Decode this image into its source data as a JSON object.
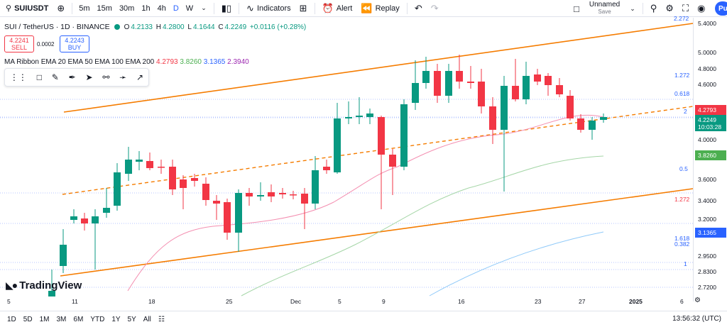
{
  "toolbar": {
    "symbol": "SUIUSDT",
    "add_icon": "plus-circle-icon",
    "timeframes": [
      "5m",
      "15m",
      "30m",
      "1h",
      "4h",
      "D",
      "W"
    ],
    "active_timeframe": "D",
    "indicators_label": "Indicators",
    "alert_label": "Alert",
    "replay_label": "Replay",
    "layout_name": "Unnamed",
    "layout_sub": "Save",
    "avatar_letter": "Pu"
  },
  "legend": {
    "title": "SUI / TetherUS · 1D · BINANCE",
    "open_label": "O",
    "open": "4.2133",
    "high_label": "H",
    "high": "4.2800",
    "low_label": "L",
    "low": "4.1644",
    "close_label": "C",
    "close": "4.2249",
    "change": "+0.0116 (+0.28%)"
  },
  "trade": {
    "sell_price": "4.2241",
    "sell_label": "SELL",
    "spread": "0.0002",
    "buy_price": "4.2243",
    "buy_label": "BUY"
  },
  "ema": {
    "name": "MA Ribbon EMA 20 EMA 50 EMA 100 EMA 200",
    "v1": "4.2793",
    "v2": "3.8260",
    "v3": "3.1365",
    "v4": "2.3940"
  },
  "price_axis": {
    "labels": [
      "5.4000",
      "5.0000",
      "4.8000",
      "4.6000",
      "4.0000",
      "3.6000",
      "3.4000",
      "3.2000",
      "2.9500",
      "2.8300",
      "2.7200"
    ],
    "top_partial": "2.272",
    "tag_ema20": "4.2793",
    "tag_close": "4.2249",
    "tag_countdown": "10:03:28",
    "tag_ema50": "3.8260",
    "tag_ema100": "3.1365"
  },
  "fib": {
    "f1272_top": "1.272",
    "f0618": "0.618",
    "f2": "2",
    "f05": "0.5",
    "f1272_red": "1.272",
    "f1618": "1.618",
    "f0382": "0.382",
    "f1": "1"
  },
  "time_axis": [
    "5",
    "11",
    "18",
    "25",
    "Dec",
    "5",
    "9",
    "16",
    "23",
    "27",
    "2025",
    "6"
  ],
  "logo_text": "TradingView",
  "bottom": {
    "ranges": [
      "1D",
      "5D",
      "1M",
      "3M",
      "6M",
      "YTD",
      "1Y",
      "5Y",
      "All"
    ],
    "clock": "13:56:32 (UTC)"
  },
  "colors": {
    "up": "#089981",
    "down": "#f23645",
    "channel": "#f57c00",
    "ema20": "#f48fb1",
    "ema50": "#a5d6a7",
    "ema100": "#90caf9"
  }
}
